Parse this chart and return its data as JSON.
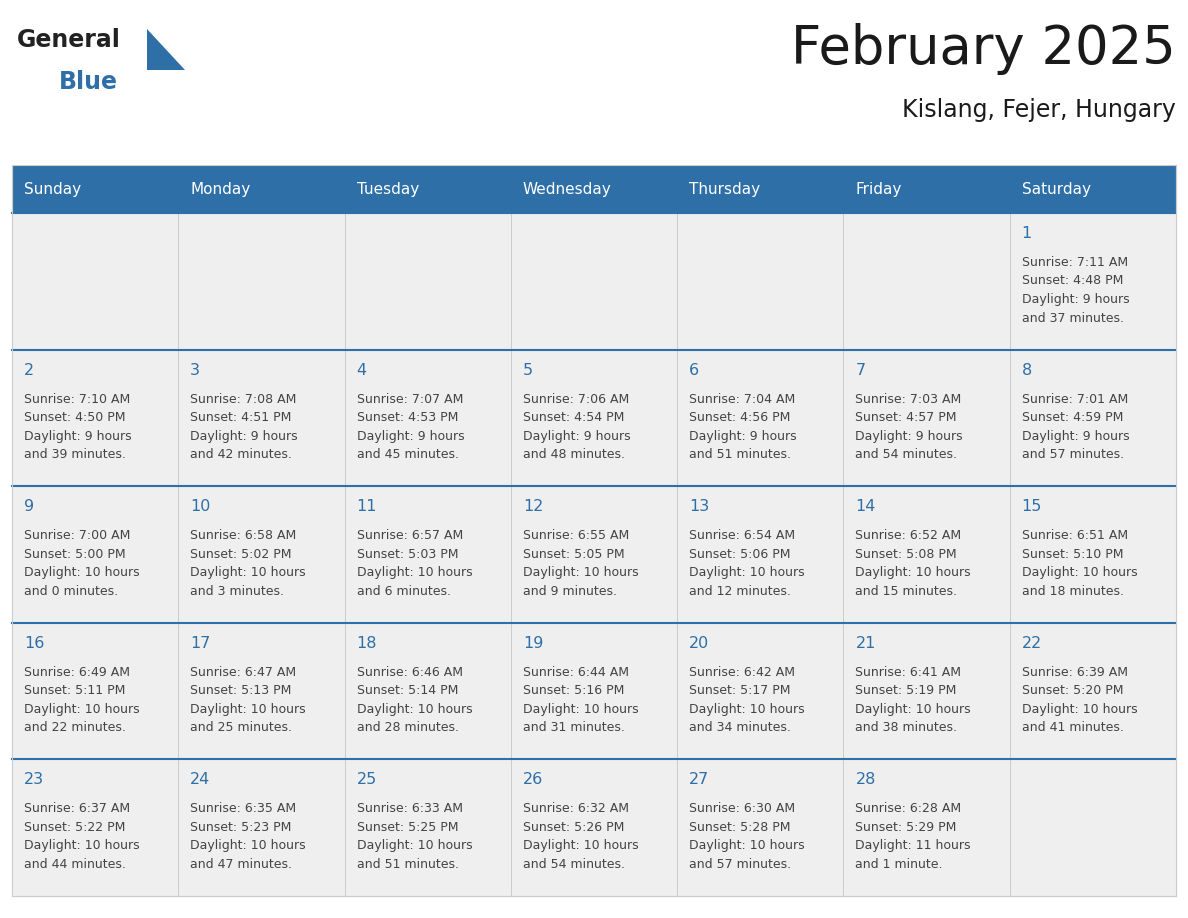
{
  "title": "February 2025",
  "subtitle": "Kislang, Fejer, Hungary",
  "days_of_week": [
    "Sunday",
    "Monday",
    "Tuesday",
    "Wednesday",
    "Thursday",
    "Friday",
    "Saturday"
  ],
  "header_bg": "#2E6FA8",
  "header_text": "#FFFFFF",
  "cell_bg": "#EFEFEF",
  "cell_bg_white": "#FFFFFF",
  "row_border_color": "#2E6FA8",
  "col_border_color": "#CCCCCC",
  "outer_border_color": "#CCCCCC",
  "day_num_color": "#2E6FA8",
  "info_color": "#444444",
  "title_color": "#1a1a1a",
  "logo_general_color": "#222222",
  "logo_blue_color": "#2E6FA8",
  "calendar_data": [
    [
      null,
      null,
      null,
      null,
      null,
      null,
      {
        "day": 1,
        "sunrise": "7:11 AM",
        "sunset": "4:48 PM",
        "dl1": "Daylight: 9 hours",
        "dl2": "and 37 minutes."
      }
    ],
    [
      {
        "day": 2,
        "sunrise": "7:10 AM",
        "sunset": "4:50 PM",
        "dl1": "Daylight: 9 hours",
        "dl2": "and 39 minutes."
      },
      {
        "day": 3,
        "sunrise": "7:08 AM",
        "sunset": "4:51 PM",
        "dl1": "Daylight: 9 hours",
        "dl2": "and 42 minutes."
      },
      {
        "day": 4,
        "sunrise": "7:07 AM",
        "sunset": "4:53 PM",
        "dl1": "Daylight: 9 hours",
        "dl2": "and 45 minutes."
      },
      {
        "day": 5,
        "sunrise": "7:06 AM",
        "sunset": "4:54 PM",
        "dl1": "Daylight: 9 hours",
        "dl2": "and 48 minutes."
      },
      {
        "day": 6,
        "sunrise": "7:04 AM",
        "sunset": "4:56 PM",
        "dl1": "Daylight: 9 hours",
        "dl2": "and 51 minutes."
      },
      {
        "day": 7,
        "sunrise": "7:03 AM",
        "sunset": "4:57 PM",
        "dl1": "Daylight: 9 hours",
        "dl2": "and 54 minutes."
      },
      {
        "day": 8,
        "sunrise": "7:01 AM",
        "sunset": "4:59 PM",
        "dl1": "Daylight: 9 hours",
        "dl2": "and 57 minutes."
      }
    ],
    [
      {
        "day": 9,
        "sunrise": "7:00 AM",
        "sunset": "5:00 PM",
        "dl1": "Daylight: 10 hours",
        "dl2": "and 0 minutes."
      },
      {
        "day": 10,
        "sunrise": "6:58 AM",
        "sunset": "5:02 PM",
        "dl1": "Daylight: 10 hours",
        "dl2": "and 3 minutes."
      },
      {
        "day": 11,
        "sunrise": "6:57 AM",
        "sunset": "5:03 PM",
        "dl1": "Daylight: 10 hours",
        "dl2": "and 6 minutes."
      },
      {
        "day": 12,
        "sunrise": "6:55 AM",
        "sunset": "5:05 PM",
        "dl1": "Daylight: 10 hours",
        "dl2": "and 9 minutes."
      },
      {
        "day": 13,
        "sunrise": "6:54 AM",
        "sunset": "5:06 PM",
        "dl1": "Daylight: 10 hours",
        "dl2": "and 12 minutes."
      },
      {
        "day": 14,
        "sunrise": "6:52 AM",
        "sunset": "5:08 PM",
        "dl1": "Daylight: 10 hours",
        "dl2": "and 15 minutes."
      },
      {
        "day": 15,
        "sunrise": "6:51 AM",
        "sunset": "5:10 PM",
        "dl1": "Daylight: 10 hours",
        "dl2": "and 18 minutes."
      }
    ],
    [
      {
        "day": 16,
        "sunrise": "6:49 AM",
        "sunset": "5:11 PM",
        "dl1": "Daylight: 10 hours",
        "dl2": "and 22 minutes."
      },
      {
        "day": 17,
        "sunrise": "6:47 AM",
        "sunset": "5:13 PM",
        "dl1": "Daylight: 10 hours",
        "dl2": "and 25 minutes."
      },
      {
        "day": 18,
        "sunrise": "6:46 AM",
        "sunset": "5:14 PM",
        "dl1": "Daylight: 10 hours",
        "dl2": "and 28 minutes."
      },
      {
        "day": 19,
        "sunrise": "6:44 AM",
        "sunset": "5:16 PM",
        "dl1": "Daylight: 10 hours",
        "dl2": "and 31 minutes."
      },
      {
        "day": 20,
        "sunrise": "6:42 AM",
        "sunset": "5:17 PM",
        "dl1": "Daylight: 10 hours",
        "dl2": "and 34 minutes."
      },
      {
        "day": 21,
        "sunrise": "6:41 AM",
        "sunset": "5:19 PM",
        "dl1": "Daylight: 10 hours",
        "dl2": "and 38 minutes."
      },
      {
        "day": 22,
        "sunrise": "6:39 AM",
        "sunset": "5:20 PM",
        "dl1": "Daylight: 10 hours",
        "dl2": "and 41 minutes."
      }
    ],
    [
      {
        "day": 23,
        "sunrise": "6:37 AM",
        "sunset": "5:22 PM",
        "dl1": "Daylight: 10 hours",
        "dl2": "and 44 minutes."
      },
      {
        "day": 24,
        "sunrise": "6:35 AM",
        "sunset": "5:23 PM",
        "dl1": "Daylight: 10 hours",
        "dl2": "and 47 minutes."
      },
      {
        "day": 25,
        "sunrise": "6:33 AM",
        "sunset": "5:25 PM",
        "dl1": "Daylight: 10 hours",
        "dl2": "and 51 minutes."
      },
      {
        "day": 26,
        "sunrise": "6:32 AM",
        "sunset": "5:26 PM",
        "dl1": "Daylight: 10 hours",
        "dl2": "and 54 minutes."
      },
      {
        "day": 27,
        "sunrise": "6:30 AM",
        "sunset": "5:28 PM",
        "dl1": "Daylight: 10 hours",
        "dl2": "and 57 minutes."
      },
      {
        "day": 28,
        "sunrise": "6:28 AM",
        "sunset": "5:29 PM",
        "dl1": "Daylight: 11 hours",
        "dl2": "and 1 minute."
      },
      null
    ]
  ]
}
